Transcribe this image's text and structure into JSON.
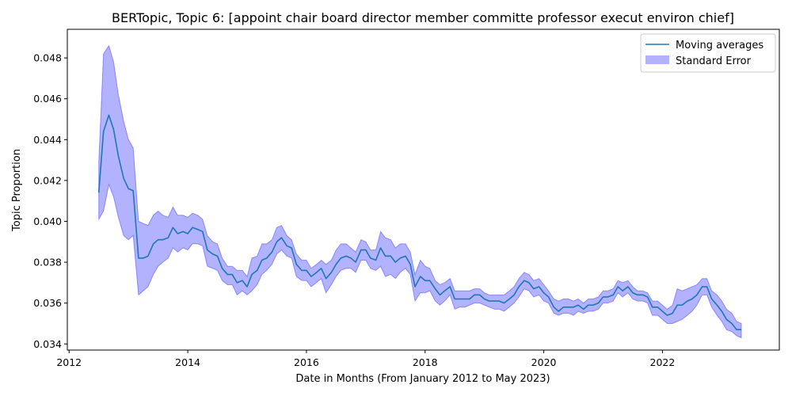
{
  "chart_data": {
    "type": "line",
    "title": "BERTopic, Topic 6: [appoint chair board director member committe professor execut environ chief]",
    "xlabel": "Date in Months (From January 2012 to May 2023)",
    "ylabel": "Topic Proportion",
    "xlim": [
      2011.97,
      2023.97
    ],
    "ylim": [
      0.0337,
      0.0494
    ],
    "xticks": [
      2012,
      2014,
      2016,
      2018,
      2020,
      2022
    ],
    "xtick_labels": [
      "2012",
      "2014",
      "2016",
      "2018",
      "2020",
      "2022"
    ],
    "yticks": [
      0.034,
      0.036,
      0.038,
      0.04,
      0.042,
      0.044,
      0.046,
      0.048
    ],
    "ytick_labels": [
      "0.034",
      "0.036",
      "0.038",
      "0.040",
      "0.042",
      "0.044",
      "0.046",
      "0.048"
    ],
    "legend_position": "upper right",
    "legend": [
      "Moving averages",
      "Standard Error"
    ],
    "colors": {
      "line": "#1f77b4",
      "band": "#0000ff",
      "band_opacity": 0.3
    },
    "x": [
      2012.5,
      2012.58,
      2012.67,
      2012.75,
      2012.83,
      2012.92,
      2013.0,
      2013.08,
      2013.17,
      2013.25,
      2013.33,
      2013.42,
      2013.5,
      2013.58,
      2013.67,
      2013.75,
      2013.83,
      2013.92,
      2014.0,
      2014.08,
      2014.17,
      2014.25,
      2014.33,
      2014.42,
      2014.5,
      2014.58,
      2014.67,
      2014.75,
      2014.83,
      2014.92,
      2015.0,
      2015.08,
      2015.17,
      2015.25,
      2015.33,
      2015.42,
      2015.5,
      2015.58,
      2015.67,
      2015.75,
      2015.83,
      2015.92,
      2016.0,
      2016.08,
      2016.17,
      2016.25,
      2016.33,
      2016.42,
      2016.5,
      2016.58,
      2016.67,
      2016.75,
      2016.83,
      2016.92,
      2017.0,
      2017.08,
      2017.17,
      2017.25,
      2017.33,
      2017.42,
      2017.5,
      2017.58,
      2017.67,
      2017.75,
      2017.83,
      2017.92,
      2018.0,
      2018.08,
      2018.17,
      2018.25,
      2018.33,
      2018.42,
      2018.5,
      2018.58,
      2018.67,
      2018.75,
      2018.83,
      2018.92,
      2019.0,
      2019.08,
      2019.17,
      2019.25,
      2019.33,
      2019.42,
      2019.5,
      2019.58,
      2019.67,
      2019.75,
      2019.83,
      2019.92,
      2020.0,
      2020.08,
      2020.17,
      2020.25,
      2020.33,
      2020.42,
      2020.5,
      2020.58,
      2020.67,
      2020.75,
      2020.83,
      2020.92,
      2021.0,
      2021.08,
      2021.17,
      2021.25,
      2021.33,
      2021.42,
      2021.5,
      2021.58,
      2021.67,
      2021.75,
      2021.83,
      2021.92,
      2022.0,
      2022.08,
      2022.17,
      2022.25,
      2022.33,
      2022.42,
      2022.5,
      2022.58,
      2022.67,
      2022.75,
      2022.83,
      2022.92,
      2023.0,
      2023.08,
      2023.17,
      2023.25,
      2023.33
    ],
    "series": [
      {
        "name": "Moving averages",
        "values": [
          0.0414,
          0.0444,
          0.0452,
          0.0445,
          0.0432,
          0.0421,
          0.0416,
          0.0415,
          0.0382,
          0.0382,
          0.0383,
          0.0389,
          0.0391,
          0.0391,
          0.0392,
          0.0397,
          0.0394,
          0.0395,
          0.0394,
          0.0397,
          0.0396,
          0.0395,
          0.0386,
          0.0384,
          0.0383,
          0.0377,
          0.0374,
          0.0374,
          0.037,
          0.0371,
          0.0368,
          0.0374,
          0.0376,
          0.0381,
          0.0382,
          0.0385,
          0.039,
          0.0392,
          0.0388,
          0.0387,
          0.0379,
          0.0376,
          0.0376,
          0.0373,
          0.0375,
          0.0377,
          0.0372,
          0.0375,
          0.0379,
          0.0382,
          0.0383,
          0.0382,
          0.038,
          0.0386,
          0.0386,
          0.0382,
          0.0381,
          0.0387,
          0.0383,
          0.0383,
          0.038,
          0.0382,
          0.0383,
          0.0379,
          0.0368,
          0.0373,
          0.0371,
          0.0371,
          0.0367,
          0.0364,
          0.0366,
          0.0368,
          0.0362,
          0.0362,
          0.0362,
          0.0362,
          0.0364,
          0.0364,
          0.0362,
          0.0361,
          0.0361,
          0.0361,
          0.036,
          0.0362,
          0.0364,
          0.0368,
          0.0371,
          0.037,
          0.0367,
          0.0368,
          0.0365,
          0.0363,
          0.0358,
          0.0356,
          0.0358,
          0.0358,
          0.0358,
          0.0359,
          0.0357,
          0.0359,
          0.0359,
          0.036,
          0.0363,
          0.0363,
          0.0364,
          0.0368,
          0.0366,
          0.0368,
          0.0365,
          0.0364,
          0.0364,
          0.0363,
          0.0358,
          0.0358,
          0.0356,
          0.0354,
          0.0355,
          0.0359,
          0.0359,
          0.0361,
          0.0362,
          0.0364,
          0.0368,
          0.0368,
          0.0362,
          0.0359,
          0.0356,
          0.0352,
          0.035,
          0.0347,
          0.0347
        ]
      },
      {
        "name": "Standard Error",
        "lower": [
          0.0401,
          0.0405,
          0.0418,
          0.0412,
          0.0402,
          0.0393,
          0.0391,
          0.0393,
          0.0364,
          0.0366,
          0.0368,
          0.0374,
          0.0378,
          0.038,
          0.0382,
          0.0387,
          0.0385,
          0.0387,
          0.0386,
          0.0389,
          0.0389,
          0.0388,
          0.0378,
          0.0377,
          0.0376,
          0.0371,
          0.0369,
          0.0369,
          0.0364,
          0.0366,
          0.0364,
          0.0366,
          0.0369,
          0.0374,
          0.0376,
          0.0379,
          0.0384,
          0.0386,
          0.0383,
          0.0382,
          0.0373,
          0.0371,
          0.0371,
          0.0368,
          0.037,
          0.0372,
          0.0365,
          0.0369,
          0.0373,
          0.0376,
          0.0377,
          0.0377,
          0.0375,
          0.0381,
          0.0381,
          0.0377,
          0.0376,
          0.0378,
          0.0373,
          0.0374,
          0.0372,
          0.0375,
          0.0377,
          0.0374,
          0.0361,
          0.0365,
          0.0365,
          0.0366,
          0.0361,
          0.0359,
          0.0361,
          0.0364,
          0.0357,
          0.0358,
          0.0358,
          0.0359,
          0.036,
          0.036,
          0.0359,
          0.0358,
          0.0357,
          0.0357,
          0.0356,
          0.0358,
          0.036,
          0.0363,
          0.0367,
          0.0366,
          0.0363,
          0.0364,
          0.0361,
          0.036,
          0.0355,
          0.0354,
          0.0355,
          0.0355,
          0.0354,
          0.0356,
          0.0355,
          0.0356,
          0.0356,
          0.0357,
          0.036,
          0.036,
          0.0361,
          0.0365,
          0.0363,
          0.0365,
          0.0362,
          0.0361,
          0.0361,
          0.036,
          0.0354,
          0.0354,
          0.0352,
          0.035,
          0.035,
          0.0351,
          0.0352,
          0.0354,
          0.0356,
          0.0359,
          0.0364,
          0.0364,
          0.0358,
          0.0354,
          0.0351,
          0.0347,
          0.0346,
          0.0344,
          0.0343
        ],
        "upper": [
          0.0429,
          0.0482,
          0.0486,
          0.0478,
          0.0462,
          0.0449,
          0.044,
          0.0436,
          0.04,
          0.0399,
          0.0398,
          0.0403,
          0.0405,
          0.0403,
          0.0402,
          0.0407,
          0.0403,
          0.0403,
          0.0402,
          0.0404,
          0.0403,
          0.0401,
          0.0393,
          0.039,
          0.0389,
          0.0382,
          0.0378,
          0.0378,
          0.0376,
          0.0376,
          0.0373,
          0.0382,
          0.0383,
          0.0389,
          0.0389,
          0.0391,
          0.0397,
          0.0398,
          0.0393,
          0.0391,
          0.0384,
          0.0381,
          0.0381,
          0.0377,
          0.0379,
          0.0381,
          0.0379,
          0.0381,
          0.0386,
          0.0389,
          0.0389,
          0.0387,
          0.0385,
          0.0391,
          0.039,
          0.0386,
          0.0386,
          0.0395,
          0.0392,
          0.0391,
          0.0387,
          0.0389,
          0.0389,
          0.0385,
          0.0374,
          0.0381,
          0.0378,
          0.0377,
          0.0371,
          0.0369,
          0.037,
          0.0372,
          0.0366,
          0.0366,
          0.0366,
          0.0366,
          0.0367,
          0.0367,
          0.0365,
          0.0364,
          0.0364,
          0.0364,
          0.0364,
          0.0366,
          0.0368,
          0.0372,
          0.0375,
          0.0374,
          0.0371,
          0.0372,
          0.0369,
          0.0366,
          0.0362,
          0.0361,
          0.0362,
          0.0362,
          0.0361,
          0.0362,
          0.036,
          0.0362,
          0.0362,
          0.0363,
          0.0366,
          0.0366,
          0.0367,
          0.0371,
          0.037,
          0.0371,
          0.0368,
          0.0366,
          0.0366,
          0.0365,
          0.0361,
          0.0361,
          0.0359,
          0.0357,
          0.0359,
          0.0367,
          0.0366,
          0.0367,
          0.0368,
          0.0369,
          0.0372,
          0.0372,
          0.0366,
          0.0364,
          0.0361,
          0.0357,
          0.0355,
          0.0351,
          0.035
        ]
      }
    ]
  }
}
